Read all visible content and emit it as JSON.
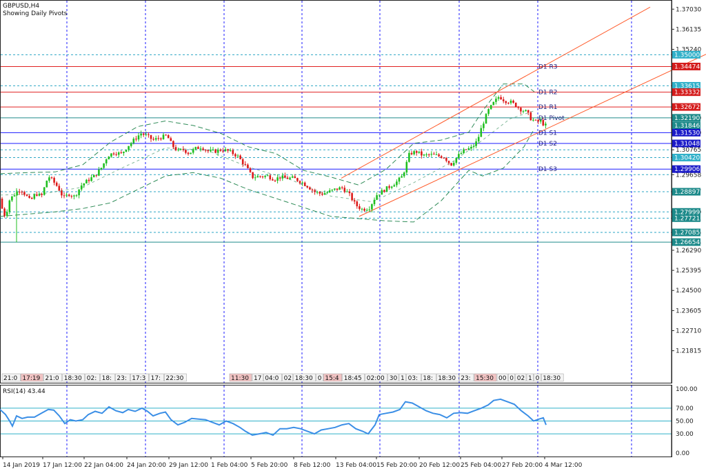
{
  "header": {
    "symbol": "GBPUSD,H4",
    "subtitle": "Showing Daily Pivots"
  },
  "colors": {
    "bull": "#1fbf1f",
    "bear": "#dd1a1a",
    "channel": "#ff5a2a",
    "resistance": "#e02020",
    "support": "#1a1aff",
    "dotted": "#2aa5c4",
    "rsi": "#3a8ee6",
    "grid": "#1a1aff",
    "tag_blue": "#1a1ac8",
    "tag_red": "#d41c1c",
    "tag_teal": "#1d8a8a",
    "tag_cyan": "#2fb0c9"
  },
  "chart_data": {
    "type": "line",
    "title": "GBPUSD,H4",
    "ylim": [
      1.2125,
      1.3713
    ],
    "y_ticks": [
      "1.37030",
      "1.36135",
      "1.35240",
      "1.32190",
      "1.31530",
      "1.30765",
      "1.29658",
      "1.28897",
      "1.27999",
      "1.27721",
      "1.27085",
      "1.26654",
      "1.26290",
      "1.25395",
      "1.24500",
      "1.23605",
      "1.22710",
      "1.21815"
    ],
    "x_labels": [
      "14 Jan 2019",
      "17 Jan 12:00",
      "22 Jan 04:00",
      "24 Jan 20:00",
      "29 Jan 12:00",
      "1 Feb 04:00",
      "5 Feb 20:00",
      "8 Feb 12:00",
      "13 Feb 04:00",
      "15 Feb 20:00",
      "20 Feb 12:00",
      "25 Feb 04:00",
      "27 Feb 20:00",
      "4 Mar 12:00"
    ],
    "price_path": [
      [
        0,
        1.2859
      ],
      [
        4,
        1.28
      ],
      [
        8,
        1.2779
      ],
      [
        14,
        1.2855
      ],
      [
        22,
        1.2882
      ],
      [
        30,
        1.2902
      ],
      [
        38,
        1.2872
      ],
      [
        44,
        1.2848
      ],
      [
        52,
        1.2882
      ],
      [
        60,
        1.2868
      ],
      [
        70,
        1.296
      ],
      [
        76,
        1.294
      ],
      [
        84,
        1.291
      ],
      [
        92,
        1.2862
      ],
      [
        100,
        1.288
      ],
      [
        108,
        1.2868
      ],
      [
        118,
        1.2918
      ],
      [
        128,
        1.2942
      ],
      [
        138,
        1.2962
      ],
      [
        148,
        1.3
      ],
      [
        156,
        1.305
      ],
      [
        166,
        1.3065
      ],
      [
        176,
        1.3058
      ],
      [
        186,
        1.3095
      ],
      [
        196,
        1.3125
      ],
      [
        204,
        1.315
      ],
      [
        212,
        1.314
      ],
      [
        222,
        1.312
      ],
      [
        232,
        1.313
      ],
      [
        242,
        1.314
      ],
      [
        250,
        1.3095
      ],
      [
        258,
        1.307
      ],
      [
        266,
        1.3078
      ],
      [
        274,
        1.306
      ],
      [
        282,
        1.308
      ],
      [
        292,
        1.309
      ],
      [
        302,
        1.307
      ],
      [
        312,
        1.307
      ],
      [
        322,
        1.3078
      ],
      [
        332,
        1.307
      ],
      [
        344,
        1.305
      ],
      [
        356,
        1.3005
      ],
      [
        366,
        1.2955
      ],
      [
        376,
        1.2958
      ],
      [
        388,
        1.296
      ],
      [
        398,
        1.2945
      ],
      [
        406,
        1.2955
      ],
      [
        416,
        1.295
      ],
      [
        426,
        1.295
      ],
      [
        436,
        1.2935
      ],
      [
        446,
        1.2915
      ],
      [
        456,
        1.289
      ],
      [
        466,
        1.288
      ],
      [
        476,
        1.2888
      ],
      [
        486,
        1.29
      ],
      [
        496,
        1.2908
      ],
      [
        506,
        1.288
      ],
      [
        516,
        1.283
      ],
      [
        526,
        1.281
      ],
      [
        536,
        1.282
      ],
      [
        546,
        1.2875
      ],
      [
        556,
        1.2895
      ],
      [
        566,
        1.2915
      ],
      [
        576,
        1.2935
      ],
      [
        584,
        1.296
      ],
      [
        594,
        1.306
      ],
      [
        604,
        1.3068
      ],
      [
        614,
        1.305
      ],
      [
        624,
        1.3055
      ],
      [
        634,
        1.305
      ],
      [
        644,
        1.3045
      ],
      [
        654,
        1.301
      ],
      [
        664,
        1.3048
      ],
      [
        674,
        1.3075
      ],
      [
        684,
        1.3085
      ],
      [
        692,
        1.3115
      ],
      [
        700,
        1.319
      ],
      [
        708,
        1.325
      ],
      [
        716,
        1.3285
      ],
      [
        724,
        1.3315
      ],
      [
        732,
        1.3295
      ],
      [
        740,
        1.329
      ],
      [
        748,
        1.3275
      ],
      [
        756,
        1.3255
      ],
      [
        764,
        1.3245
      ],
      [
        770,
        1.3215
      ],
      [
        778,
        1.32
      ],
      [
        784,
        1.3205
      ],
      [
        790,
        1.3185
      ]
    ],
    "bands_upper": [
      [
        0,
        1.297
      ],
      [
        40,
        1.2975
      ],
      [
        80,
        1.2978
      ],
      [
        120,
        1.301
      ],
      [
        160,
        1.311
      ],
      [
        200,
        1.318
      ],
      [
        240,
        1.3205
      ],
      [
        280,
        1.3185
      ],
      [
        320,
        1.315
      ],
      [
        360,
        1.309
      ],
      [
        400,
        1.306
      ],
      [
        440,
        1.2985
      ],
      [
        480,
        1.2955
      ],
      [
        520,
        1.292
      ],
      [
        560,
        1.299
      ],
      [
        600,
        1.3105
      ],
      [
        640,
        1.312
      ],
      [
        680,
        1.3155
      ],
      [
        700,
        1.325
      ],
      [
        730,
        1.337
      ],
      [
        760,
        1.337
      ],
      [
        775,
        1.3335
      ]
    ],
    "bands_lower": [
      [
        0,
        1.278
      ],
      [
        40,
        1.279
      ],
      [
        80,
        1.28
      ],
      [
        120,
        1.2815
      ],
      [
        160,
        1.284
      ],
      [
        200,
        1.29
      ],
      [
        240,
        1.296
      ],
      [
        280,
        1.2975
      ],
      [
        320,
        1.295
      ],
      [
        360,
        1.29
      ],
      [
        400,
        1.286
      ],
      [
        440,
        1.282
      ],
      [
        480,
        1.278
      ],
      [
        520,
        1.277
      ],
      [
        560,
        1.276
      ],
      [
        600,
        1.2755
      ],
      [
        640,
        1.285
      ],
      [
        680,
        1.2985
      ],
      [
        700,
        1.296
      ],
      [
        730,
        1.2995
      ],
      [
        760,
        1.309
      ],
      [
        775,
        1.317
      ]
    ],
    "bands_mid": [
      [
        0,
        1.2875
      ],
      [
        60,
        1.288
      ],
      [
        120,
        1.291
      ],
      [
        180,
        1.3
      ],
      [
        240,
        1.3085
      ],
      [
        300,
        1.3075
      ],
      [
        360,
        1.3
      ],
      [
        420,
        1.2945
      ],
      [
        480,
        1.287
      ],
      [
        540,
        1.2845
      ],
      [
        600,
        1.293
      ],
      [
        660,
        1.303
      ],
      [
        700,
        1.312
      ],
      [
        740,
        1.3215
      ],
      [
        775,
        1.325
      ]
    ],
    "channel_upper": [
      [
        495,
        1.295
      ],
      [
        943,
        1.3712
      ]
    ],
    "channel_lower": [
      [
        521,
        1.278
      ],
      [
        1024,
        1.3502
      ]
    ],
    "horizontal_levels": [
      {
        "value": 1.35,
        "label": "1.35000",
        "style": "dotted",
        "tag": "tag_cyan"
      },
      {
        "value": 1.34474,
        "label": "1.34474",
        "style": "resistance",
        "tag": "tag_red"
      },
      {
        "value": 1.33615,
        "label": "1.33615",
        "style": "dotted",
        "tag": "tag_cyan"
      },
      {
        "value": 1.33332,
        "label": "1.33332",
        "style": "resistance",
        "tag": "tag_red"
      },
      {
        "value": 1.32672,
        "label": "1.32672",
        "style": "resistance",
        "tag": "tag_red"
      },
      {
        "value": 1.3219,
        "label": "1.32190",
        "style": "teal",
        "tag": "tag_teal"
      },
      {
        "value": 1.31846,
        "label": "1.31846",
        "style": "none",
        "tag": "tag_teal"
      },
      {
        "value": 1.3153,
        "label": "1.31530",
        "style": "support",
        "tag": "tag_blue"
      },
      {
        "value": 1.31048,
        "label": "1.31048",
        "style": "support",
        "tag": "tag_blue"
      },
      {
        "value": 1.30765,
        "label": "1.30765",
        "style": "dotted",
        "tag": "none"
      },
      {
        "value": 1.3042,
        "label": "1.30420",
        "style": "dotted",
        "tag": "tag_cyan"
      },
      {
        "value": 1.29906,
        "label": "1.29906",
        "style": "support",
        "tag": "tag_blue"
      },
      {
        "value": 1.29658,
        "label": "1.29658",
        "style": "dotted",
        "tag": "none"
      },
      {
        "value": 1.28897,
        "label": "1.28897",
        "style": "dotted",
        "tag": "tag_teal"
      },
      {
        "value": 1.27999,
        "label": "1.27999",
        "style": "dotted",
        "tag": "tag_teal"
      },
      {
        "value": 1.27721,
        "label": "1.27721",
        "style": "dotted",
        "tag": "tag_teal"
      },
      {
        "value": 1.27085,
        "label": "1.27085",
        "style": "dotted",
        "tag": "tag_teal"
      },
      {
        "value": 1.26654,
        "label": "1.26654",
        "style": "teal",
        "tag": "tag_teal"
      }
    ],
    "pivot_labels": [
      {
        "text": "D1 R3",
        "value": 1.3447
      },
      {
        "text": "D1 R2",
        "value": 1.3333
      },
      {
        "text": "D1 R1",
        "value": 1.3267
      },
      {
        "text": "D1 Pivot",
        "value": 1.3219
      },
      {
        "text": "D1 S1",
        "value": 1.3153
      },
      {
        "text": "D1 S2",
        "value": 1.3105
      },
      {
        "text": "D1 S3",
        "value": 1.2991
      }
    ],
    "time_stamps": [
      "21:0",
      "17:19",
      "21:0",
      "18:30",
      "02:",
      "18:",
      "23:",
      "17:3",
      "17:",
      "22:30",
      "11:30",
      "17",
      "04:0",
      "02",
      "18:30",
      "0",
      "15:4",
      "18:45",
      "02:00",
      "30",
      "1",
      "03:",
      "18:",
      "18:30",
      "23:",
      "15:30",
      "00",
      "0",
      "02",
      "1",
      "0",
      "18:30"
    ],
    "rsi": {
      "label": "RSI(14) 43.44",
      "levels": [
        70,
        50,
        30
      ],
      "y_ticks": [
        "100.00",
        "70.00",
        "50.00",
        "30.00",
        "0.00"
      ],
      "ylim": [
        0,
        100
      ],
      "path": [
        [
          0,
          68
        ],
        [
          8,
          60
        ],
        [
          14,
          50
        ],
        [
          18,
          42
        ],
        [
          24,
          58
        ],
        [
          32,
          54
        ],
        [
          40,
          56
        ],
        [
          50,
          56
        ],
        [
          60,
          62
        ],
        [
          70,
          68
        ],
        [
          78,
          67
        ],
        [
          86,
          58
        ],
        [
          94,
          46
        ],
        [
          102,
          52
        ],
        [
          110,
          50
        ],
        [
          120,
          52
        ],
        [
          128,
          60
        ],
        [
          138,
          65
        ],
        [
          148,
          62
        ],
        [
          158,
          72
        ],
        [
          168,
          66
        ],
        [
          178,
          63
        ],
        [
          186,
          68
        ],
        [
          196,
          65
        ],
        [
          206,
          70
        ],
        [
          214,
          65
        ],
        [
          222,
          58
        ],
        [
          232,
          62
        ],
        [
          240,
          64
        ],
        [
          248,
          52
        ],
        [
          258,
          44
        ],
        [
          268,
          48
        ],
        [
          278,
          54
        ],
        [
          288,
          53
        ],
        [
          298,
          52
        ],
        [
          308,
          48
        ],
        [
          318,
          44
        ],
        [
          328,
          50
        ],
        [
          338,
          46
        ],
        [
          348,
          40
        ],
        [
          356,
          34
        ],
        [
          366,
          28
        ],
        [
          376,
          30
        ],
        [
          386,
          32
        ],
        [
          396,
          28
        ],
        [
          406,
          38
        ],
        [
          416,
          38
        ],
        [
          426,
          40
        ],
        [
          436,
          38
        ],
        [
          446,
          34
        ],
        [
          456,
          30
        ],
        [
          466,
          36
        ],
        [
          476,
          38
        ],
        [
          486,
          40
        ],
        [
          496,
          44
        ],
        [
          506,
          46
        ],
        [
          516,
          38
        ],
        [
          526,
          34
        ],
        [
          534,
          30
        ],
        [
          544,
          44
        ],
        [
          550,
          60
        ],
        [
          560,
          62
        ],
        [
          570,
          64
        ],
        [
          580,
          68
        ],
        [
          588,
          80
        ],
        [
          598,
          78
        ],
        [
          608,
          72
        ],
        [
          618,
          66
        ],
        [
          628,
          62
        ],
        [
          638,
          60
        ],
        [
          648,
          55
        ],
        [
          658,
          62
        ],
        [
          668,
          63
        ],
        [
          678,
          62
        ],
        [
          688,
          66
        ],
        [
          698,
          70
        ],
        [
          708,
          75
        ],
        [
          716,
          82
        ],
        [
          726,
          84
        ],
        [
          736,
          80
        ],
        [
          746,
          76
        ],
        [
          756,
          66
        ],
        [
          766,
          58
        ],
        [
          774,
          50
        ],
        [
          782,
          53
        ],
        [
          788,
          55
        ],
        [
          792,
          44
        ]
      ]
    }
  }
}
